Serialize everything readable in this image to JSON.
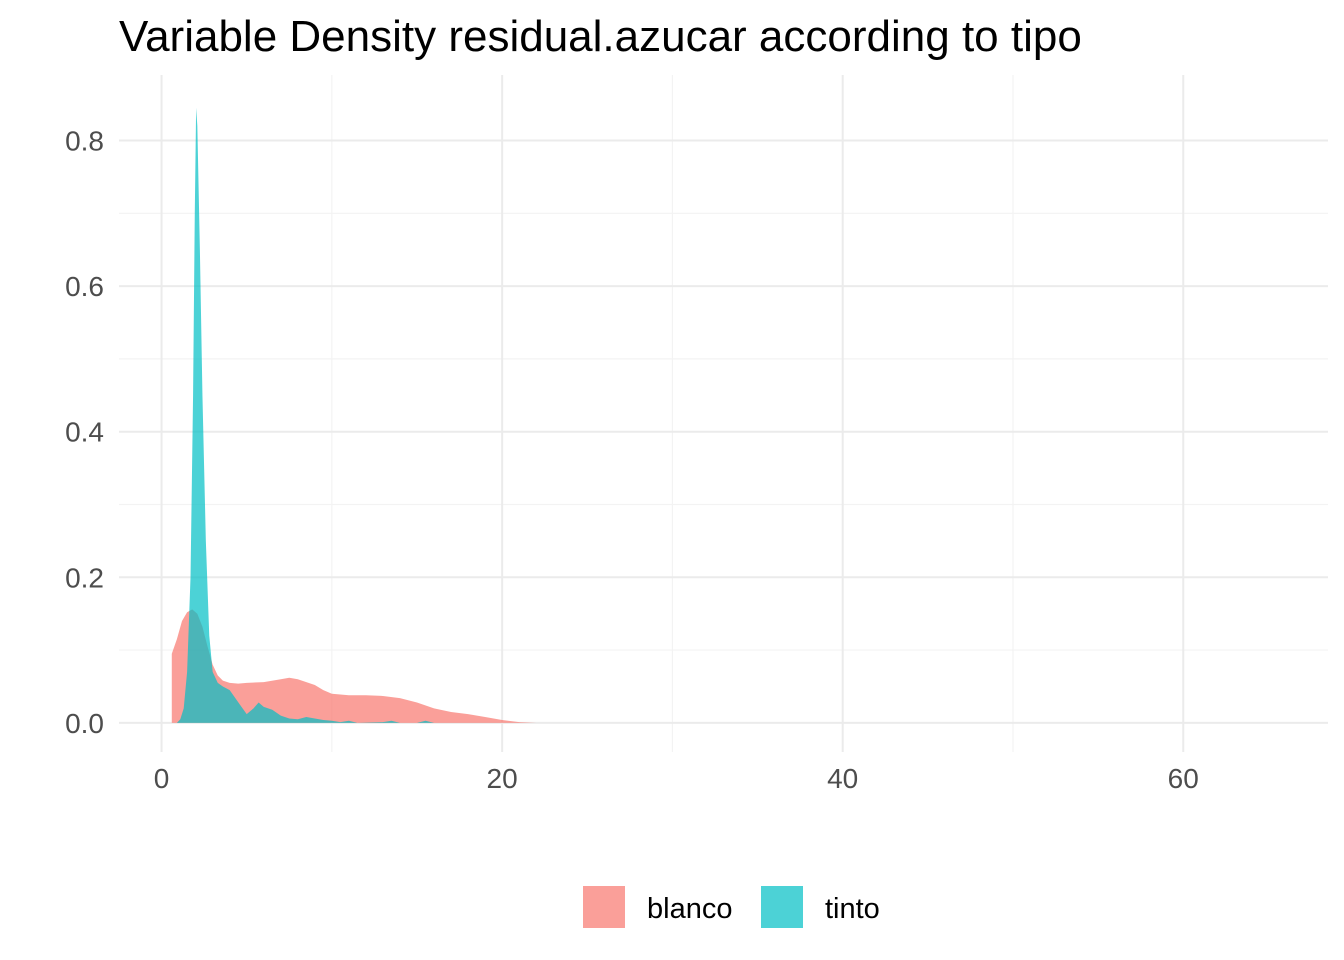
{
  "chart_data": {
    "type": "area",
    "title": "Variable Density residual.azucar according to tipo",
    "xlabel": "",
    "ylabel": "",
    "xlim": [
      -2.5,
      68.5
    ],
    "ylim": [
      -0.04,
      0.89
    ],
    "x_ticks": [
      0,
      20,
      40,
      60
    ],
    "x_tick_labels": [
      "0",
      "20",
      "40",
      "60"
    ],
    "y_ticks": [
      0.0,
      0.2,
      0.4,
      0.6,
      0.8
    ],
    "y_tick_labels": [
      "0.0",
      "0.2",
      "0.4",
      "0.6",
      "0.8"
    ],
    "x_minor_ticks": [
      10,
      30,
      50
    ],
    "y_minor_ticks": [
      0.1,
      0.3,
      0.5,
      0.7
    ],
    "grid": true,
    "legend_position": "bottom",
    "series": [
      {
        "name": "blanco",
        "color": "#F8766D",
        "opacity": 0.7,
        "points": [
          [
            0.6,
            0.0
          ],
          [
            0.6,
            0.095
          ],
          [
            0.9,
            0.115
          ],
          [
            1.2,
            0.14
          ],
          [
            1.5,
            0.152
          ],
          [
            1.8,
            0.156
          ],
          [
            2.1,
            0.15
          ],
          [
            2.4,
            0.132
          ],
          [
            2.7,
            0.105
          ],
          [
            3.0,
            0.08
          ],
          [
            3.3,
            0.065
          ],
          [
            3.6,
            0.058
          ],
          [
            4.0,
            0.055
          ],
          [
            4.5,
            0.054
          ],
          [
            5.0,
            0.055
          ],
          [
            6.0,
            0.056
          ],
          [
            7.0,
            0.06
          ],
          [
            7.5,
            0.062
          ],
          [
            8.0,
            0.06
          ],
          [
            9.0,
            0.052
          ],
          [
            9.5,
            0.045
          ],
          [
            10.0,
            0.04
          ],
          [
            11.0,
            0.038
          ],
          [
            12.0,
            0.038
          ],
          [
            13.0,
            0.037
          ],
          [
            14.0,
            0.034
          ],
          [
            15.0,
            0.028
          ],
          [
            16.0,
            0.02
          ],
          [
            17.0,
            0.015
          ],
          [
            18.0,
            0.012
          ],
          [
            19.0,
            0.008
          ],
          [
            20.0,
            0.004
          ],
          [
            21.0,
            0.001
          ],
          [
            22.0,
            0.0
          ]
        ]
      },
      {
        "name": "tinto",
        "color": "#00BFC4",
        "opacity": 0.7,
        "points": [
          [
            0.9,
            0.0
          ],
          [
            1.1,
            0.005
          ],
          [
            1.3,
            0.02
          ],
          [
            1.5,
            0.07
          ],
          [
            1.7,
            0.2
          ],
          [
            1.85,
            0.45
          ],
          [
            1.95,
            0.7
          ],
          [
            2.03,
            0.845
          ],
          [
            2.1,
            0.82
          ],
          [
            2.25,
            0.65
          ],
          [
            2.4,
            0.45
          ],
          [
            2.6,
            0.25
          ],
          [
            2.8,
            0.12
          ],
          [
            3.0,
            0.07
          ],
          [
            3.3,
            0.055
          ],
          [
            3.6,
            0.05
          ],
          [
            4.0,
            0.045
          ],
          [
            4.3,
            0.035
          ],
          [
            4.6,
            0.025
          ],
          [
            5.0,
            0.012
          ],
          [
            5.4,
            0.02
          ],
          [
            5.7,
            0.028
          ],
          [
            6.0,
            0.022
          ],
          [
            6.5,
            0.018
          ],
          [
            7.0,
            0.01
          ],
          [
            7.5,
            0.006
          ],
          [
            8.0,
            0.005
          ],
          [
            8.5,
            0.008
          ],
          [
            9.0,
            0.006
          ],
          [
            9.5,
            0.004
          ],
          [
            10.0,
            0.003
          ],
          [
            10.5,
            0.001
          ],
          [
            11.0,
            0.003
          ],
          [
            11.5,
            0.0
          ],
          [
            13.0,
            0.001
          ],
          [
            13.5,
            0.003
          ],
          [
            14.0,
            0.0
          ],
          [
            15.0,
            0.0
          ],
          [
            15.5,
            0.003
          ],
          [
            16.0,
            0.0
          ]
        ]
      }
    ]
  }
}
